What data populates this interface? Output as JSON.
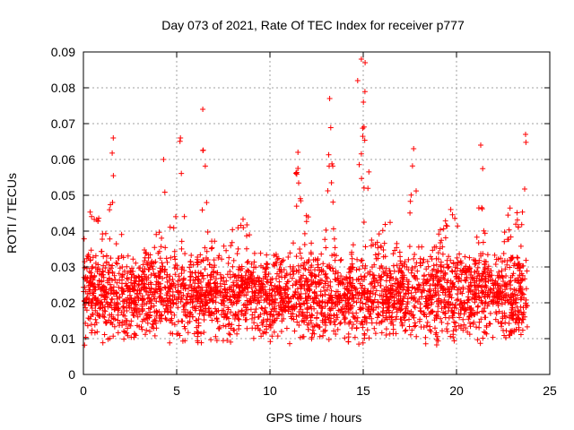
{
  "chart_data": {
    "type": "scatter",
    "title": "Day 073 of 2021, Rate Of TEC Index for receiver p777",
    "xlabel": "GPS time / hours",
    "ylabel": "ROTI / TECUs",
    "xlim": [
      0,
      25
    ],
    "ylim": [
      0,
      0.09
    ],
    "x_ticks": [
      0,
      5,
      10,
      15,
      20,
      25
    ],
    "x_tick_labels": [
      "0",
      "5",
      "10",
      "15",
      "20",
      "25"
    ],
    "y_ticks": [
      0,
      0.01,
      0.02,
      0.03,
      0.04,
      0.05,
      0.06,
      0.07,
      0.08,
      0.09
    ],
    "y_tick_labels": [
      "0",
      "0.01",
      "0.02",
      "0.03",
      "0.04",
      "0.05",
      "0.06",
      "0.07",
      "0.08",
      "0.09"
    ],
    "grid": true,
    "marker": "+",
    "color": "#ff0000",
    "series": [
      {
        "name": "",
        "x_range": [
          0,
          23.8
        ],
        "baseline_band": [
          0.008,
          0.035
        ],
        "peaks": [
          {
            "x": 1.6,
            "y": 0.066
          },
          {
            "x": 5.2,
            "y": 0.066
          },
          {
            "x": 6.4,
            "y": 0.074
          },
          {
            "x": 4.3,
            "y": 0.06
          },
          {
            "x": 11.5,
            "y": 0.062
          },
          {
            "x": 13.2,
            "y": 0.077
          },
          {
            "x": 14.9,
            "y": 0.088
          },
          {
            "x": 15.1,
            "y": 0.087
          },
          {
            "x": 14.7,
            "y": 0.082
          },
          {
            "x": 17.7,
            "y": 0.063
          },
          {
            "x": 21.3,
            "y": 0.064
          },
          {
            "x": 23.7,
            "y": 0.067
          }
        ]
      }
    ]
  }
}
